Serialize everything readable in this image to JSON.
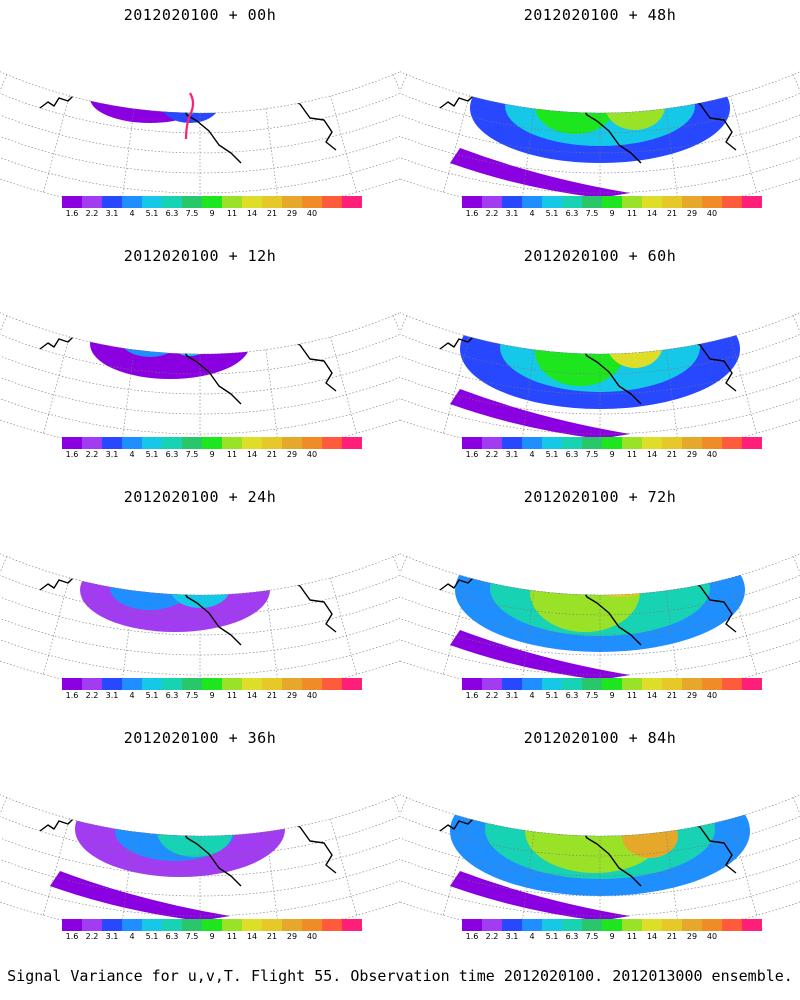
{
  "caption": "Signal Variance for u,v,T. Flight 55. Observation time 2012020100. 2012013000 ensemble.",
  "colorbar": {
    "colors": [
      "#8b00e0",
      "#a23cf0",
      "#2848ff",
      "#1f8fff",
      "#16c8e8",
      "#18d2b4",
      "#28c86a",
      "#1ee61e",
      "#9ae228",
      "#dede28",
      "#e6c828",
      "#e6a82a",
      "#f08c28",
      "#ff5a3c",
      "#ff1e78"
    ],
    "tick_labels": [
      "1.6",
      "2.2",
      "3.1",
      "4",
      "5.1",
      "6.3",
      "7.5",
      "9",
      "11",
      "14",
      "21",
      "29",
      "40"
    ]
  },
  "panels": [
    {
      "title": "2012020100 + 00h",
      "intensity": 0
    },
    {
      "title": "2012020100 + 48h",
      "intensity": 4
    },
    {
      "title": "2012020100 + 12h",
      "intensity": 1
    },
    {
      "title": "2012020100 + 60h",
      "intensity": 5
    },
    {
      "title": "2012020100 + 24h",
      "intensity": 2
    },
    {
      "title": "2012020100 + 72h",
      "intensity": 6
    },
    {
      "title": "2012020100 + 36h",
      "intensity": 3
    },
    {
      "title": "2012020100 + 84h",
      "intensity": 7
    }
  ]
}
